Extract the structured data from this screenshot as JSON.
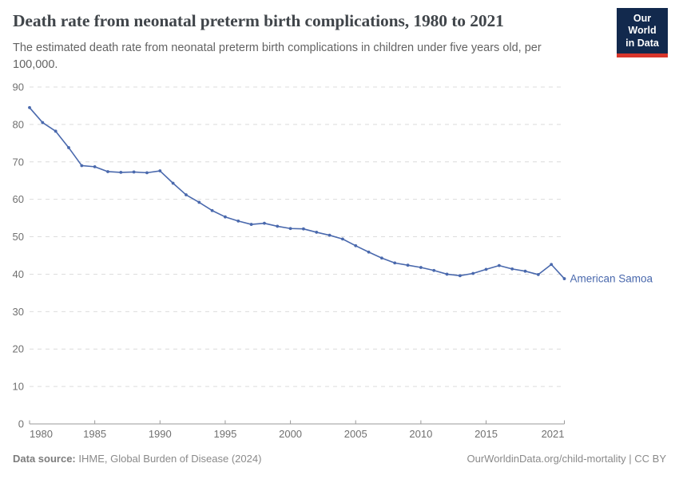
{
  "header": {
    "title": "Death rate from neonatal preterm birth complications, 1980 to 2021",
    "subtitle": "The estimated death rate from neonatal preterm birth complications in children under five years old, per 100,000.",
    "logo": {
      "line1": "Our World",
      "line2": "in Data",
      "bg_color": "#12294d",
      "accent_color": "#d8352b"
    }
  },
  "chart_data": {
    "type": "line",
    "title": "Death rate from neonatal preterm birth complications, 1980 to 2021",
    "subtitle": "The estimated death rate from neonatal preterm birth complications in children under five years old, per 100,000.",
    "xlabel": "",
    "ylabel": "",
    "xlim": [
      1980,
      2021
    ],
    "ylim": [
      0,
      90
    ],
    "xticks": [
      1980,
      1985,
      1990,
      1995,
      2000,
      2005,
      2010,
      2015,
      2021
    ],
    "yticks": [
      0,
      10,
      20,
      30,
      40,
      50,
      60,
      70,
      80,
      90
    ],
    "grid": "horizontal-dashed",
    "legend_position": "end-of-line-label",
    "years": [
      1980,
      1981,
      1982,
      1983,
      1984,
      1985,
      1986,
      1987,
      1988,
      1989,
      1990,
      1991,
      1992,
      1993,
      1994,
      1995,
      1996,
      1997,
      1998,
      1999,
      2000,
      2001,
      2002,
      2003,
      2004,
      2005,
      2006,
      2007,
      2008,
      2009,
      2010,
      2011,
      2012,
      2013,
      2014,
      2015,
      2016,
      2017,
      2018,
      2019,
      2020,
      2021
    ],
    "series": [
      {
        "name": "American Samoa",
        "color": "#4a69ad",
        "values": [
          84.5,
          80.5,
          78.2,
          73.8,
          69.0,
          68.7,
          67.4,
          67.2,
          67.3,
          67.1,
          67.6,
          64.3,
          61.2,
          59.2,
          57.0,
          55.3,
          54.2,
          53.3,
          53.6,
          52.8,
          52.2,
          52.1,
          51.2,
          50.4,
          49.4,
          47.6,
          45.9,
          44.3,
          43.0,
          42.4,
          41.8,
          41.0,
          40.0,
          39.6,
          40.2,
          41.3,
          42.3,
          41.4,
          40.8,
          39.9,
          42.6,
          38.8
        ]
      }
    ]
  },
  "footer": {
    "source_label": "Data source:",
    "source_text": " IHME, Global Burden of Disease (2024)",
    "link_text": "OurWorldinData.org/child-mortality | CC BY"
  },
  "colors": {
    "line": "#4a69ad",
    "gridline": "#dcdcdc",
    "axis": "#9a9a9a",
    "tick_label": "#707070",
    "title": "#40454a",
    "subtitle": "#636363",
    "footer": "#8a8a8a"
  }
}
